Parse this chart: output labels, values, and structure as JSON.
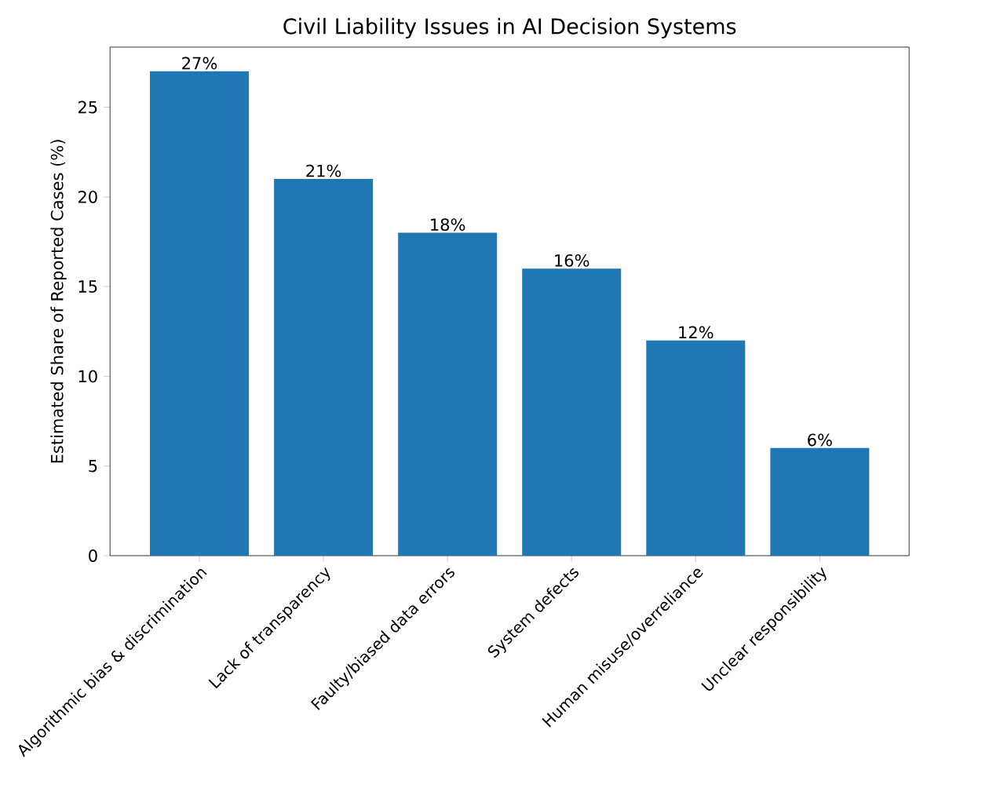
{
  "chart_data": {
    "type": "bar",
    "title": "Civil Liability Issues in AI Decision Systems",
    "ylabel": "Estimated Share of Reported Cases (%)",
    "categories": [
      "Algorithmic bias & discrimination",
      "Lack of transparency",
      "Faulty/biased data errors",
      "System defects",
      "Human misuse/overreliance",
      "Unclear responsibility"
    ],
    "values": [
      27,
      21,
      18,
      16,
      12,
      6
    ],
    "value_labels": [
      "27%",
      "21%",
      "18%",
      "16%",
      "12%",
      "6%"
    ],
    "color": "#1f77b4",
    "ylim": [
      0,
      28.35
    ],
    "yticks": [
      0,
      5,
      10,
      15,
      20,
      25
    ],
    "grid": false
  }
}
